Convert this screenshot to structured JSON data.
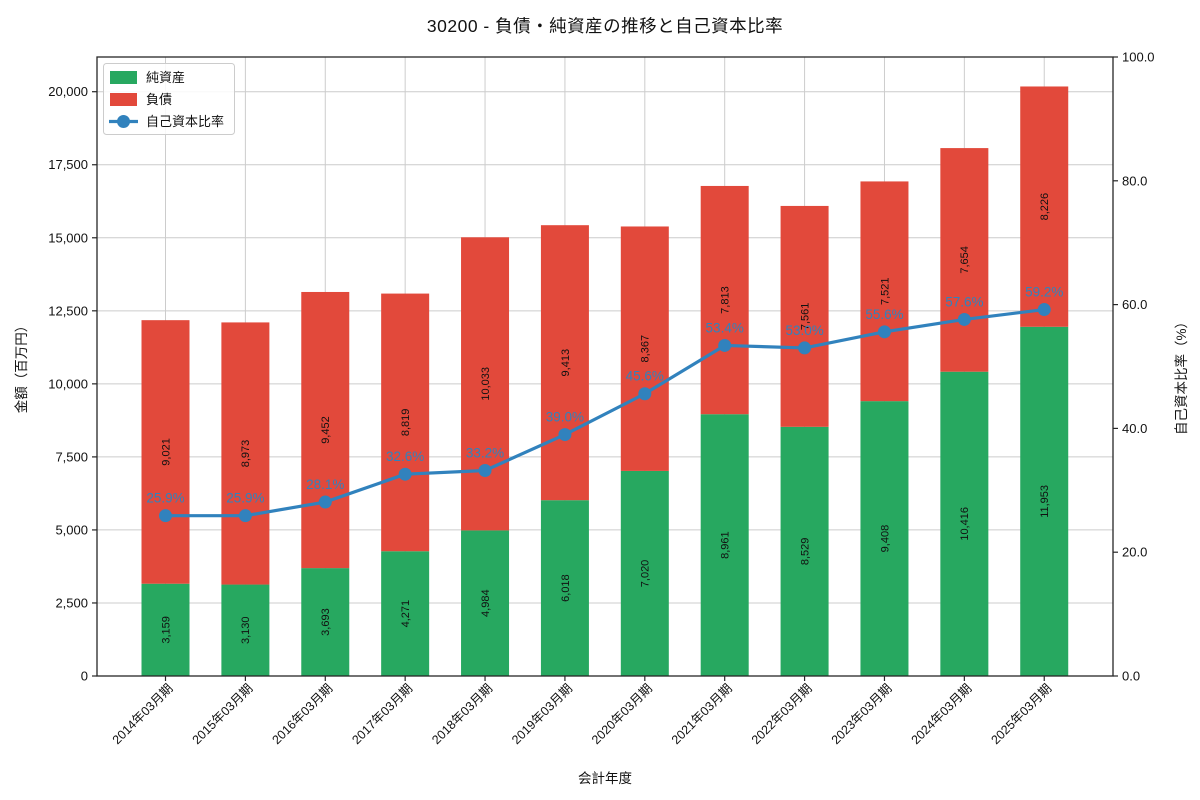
{
  "chart_data": {
    "type": "bar",
    "stacked": true,
    "overlay": "line",
    "title": "30200 - 負債・純資産の推移と自己資本比率",
    "xlabel": "会計年度",
    "ylabel_left": "金額（百万円）",
    "ylabel_right": "自己資本比率（%）",
    "categories": [
      "2014年03月期",
      "2015年03月期",
      "2016年03月期",
      "2017年03月期",
      "2018年03月期",
      "2019年03月期",
      "2020年03月期",
      "2021年03月期",
      "2022年03月期",
      "2023年03月期",
      "2024年03月期",
      "2025年03月期"
    ],
    "series": [
      {
        "name": "純資産",
        "type": "bar",
        "color": "#27a860",
        "values": [
          3159,
          3130,
          3693,
          4271,
          4984,
          6018,
          7020,
          8961,
          8529,
          9408,
          10416,
          11953
        ]
      },
      {
        "name": "負債",
        "type": "bar",
        "color": "#e2493b",
        "values": [
          9021,
          8973,
          9452,
          8819,
          10033,
          9413,
          8367,
          7813,
          7561,
          7521,
          7654,
          8226
        ]
      },
      {
        "name": "自己資本比率",
        "type": "line",
        "color": "#3182bd",
        "values": [
          25.9,
          25.9,
          28.1,
          32.6,
          33.2,
          39.0,
          45.6,
          53.4,
          53.0,
          55.6,
          57.6,
          59.2
        ]
      }
    ],
    "axes": {
      "left": {
        "ticks": [
          0,
          2500,
          5000,
          7500,
          10000,
          12500,
          15000,
          17500,
          20000
        ],
        "lim": [
          0,
          21188
        ]
      },
      "right": {
        "ticks": [
          0,
          20,
          40,
          60,
          80,
          100
        ],
        "lim": [
          0,
          100
        ]
      }
    },
    "grid": true,
    "legend": {
      "position": "upper-left",
      "entries": [
        "純資産",
        "負債",
        "自己資本比率"
      ]
    },
    "colors": {
      "grid": "#cccccc",
      "spine": "#262626",
      "text": "#111111",
      "bar_label": "#111111"
    }
  }
}
